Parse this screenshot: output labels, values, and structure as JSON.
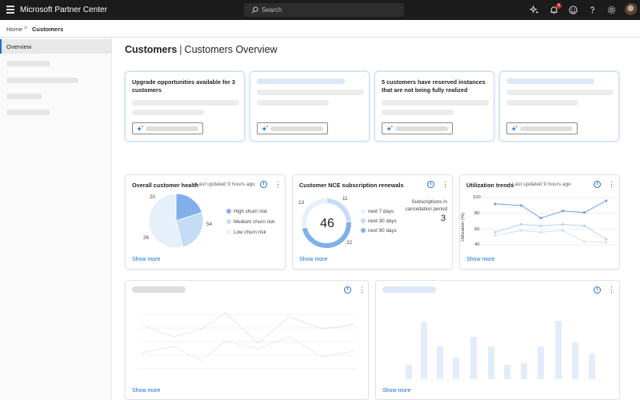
{
  "header": {
    "app_title": "Microsoft Partner Center",
    "search_placeholder": "Search",
    "notification_count": "8"
  },
  "breadcrumb": {
    "home": "Home",
    "separator": ">",
    "current": "Customers"
  },
  "sidebar": {
    "active_item": "Overview"
  },
  "page": {
    "title_bold": "Customers",
    "title_separator": "|",
    "title_rest": "Customers Overview"
  },
  "insight_cards": [
    {
      "text": "Upgrade opportunities available for 3 customers"
    },
    {
      "text": ""
    },
    {
      "text": "5 customers have reserved instances that are not being fully realized"
    },
    {
      "text": ""
    }
  ],
  "health_panel": {
    "title": "Overall customer health",
    "updated": "Last updated 9 hours ago",
    "show_more": "Show more"
  },
  "nce_panel": {
    "title": "Customer NCE subscription renewals",
    "total": "46",
    "cancellation_label_1": "Subscriptions in",
    "cancellation_label_2": "cancellation period",
    "cancellation_value": "3",
    "show_more": "Show more"
  },
  "util_panel": {
    "title": "Utilization trends",
    "updated": "Last updated 9 hours ago",
    "show_more": "Show more"
  },
  "bottom_left": {
    "show_more": "Show more"
  },
  "bottom_right": {
    "show_more": "Show more"
  },
  "colors": {
    "accent": "#1f6fd1",
    "topbar": "#1b1b1b",
    "badge": "#c42b1c"
  },
  "chart_data": [
    {
      "type": "pie",
      "categories": [
        "High churn risk",
        "Medium churn risk",
        "Low churn risk"
      ],
      "values": [
        20,
        26,
        54
      ],
      "colors": [
        "#7fb0ea",
        "#c6dcf6",
        "#e6f0fb"
      ],
      "data_labels": [
        "20",
        "26",
        "54"
      ]
    },
    {
      "type": "pie",
      "categories": [
        "next 7 days",
        "next 30 days",
        "next 90 days"
      ],
      "values": [
        13,
        11,
        22
      ],
      "colors": [
        "#e8f0fa",
        "#c6dcf6",
        "#7fb0ea"
      ],
      "data_labels": [
        "13",
        "11",
        "22"
      ],
      "center_value": "46"
    },
    {
      "type": "line",
      "ylabel": "Utilization (%)",
      "ylim": [
        40,
        100
      ],
      "yticks": [
        "100",
        "80",
        "60",
        "40"
      ],
      "x": [
        0,
        1,
        2,
        3,
        4,
        5,
        6
      ],
      "series": [
        {
          "values": [
            92,
            90,
            74,
            83,
            81,
            96
          ],
          "color": "#6fa3e3",
          "x": [
            0,
            1.2,
            2.1,
            3.1,
            4.1,
            5.1
          ]
        },
        {
          "values": [
            56,
            66,
            64,
            66,
            64,
            47
          ],
          "color": "#b9d1ef",
          "x": [
            0,
            1.2,
            2.1,
            3.1,
            4.1,
            5.1
          ]
        },
        {
          "values": [
            52,
            58,
            56,
            58,
            44,
            43
          ],
          "color": "#d3e2f4",
          "x": [
            0,
            1.2,
            2.1,
            3.1,
            4.1,
            5.1
          ]
        }
      ]
    }
  ]
}
